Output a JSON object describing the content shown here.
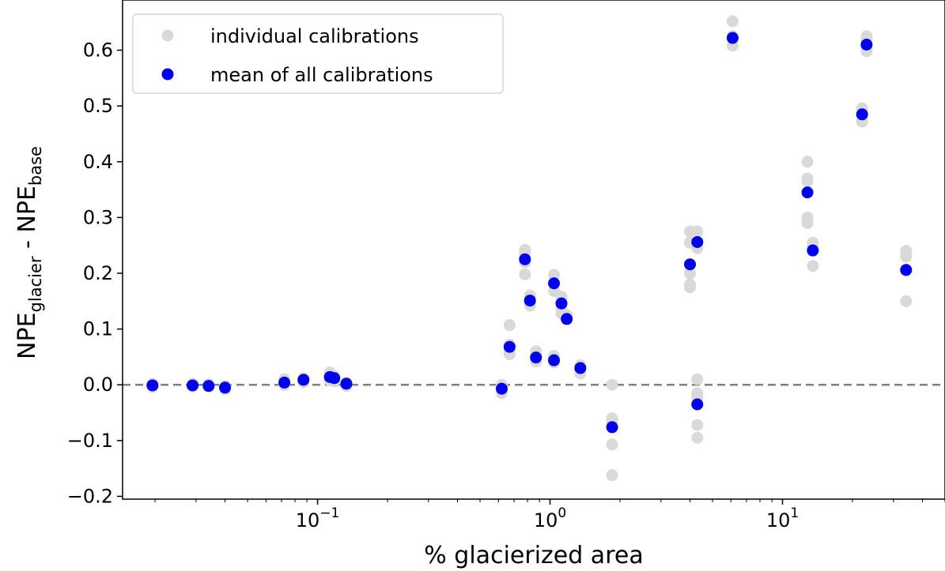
{
  "chart_data": {
    "type": "scatter",
    "xscale": "log",
    "xlim": [
      0.0145,
      50
    ],
    "ylim": [
      -0.205,
      0.69
    ],
    "xlabel": "% glacierized area",
    "ylabel": {
      "main": "NPE",
      "sub1": "glacier",
      "mid": " - NPE",
      "sub2": "base"
    },
    "y_ticks": [
      {
        "value": -0.2,
        "label": "−0.2"
      },
      {
        "value": -0.1,
        "label": "−0.1"
      },
      {
        "value": 0.0,
        "label": "0.0"
      },
      {
        "value": 0.1,
        "label": "0.1"
      },
      {
        "value": 0.2,
        "label": "0.2"
      },
      {
        "value": 0.3,
        "label": "0.3"
      },
      {
        "value": 0.4,
        "label": "0.4"
      },
      {
        "value": 0.5,
        "label": "0.5"
      },
      {
        "value": 0.6,
        "label": "0.6"
      }
    ],
    "x_ticks": [
      {
        "value": 0.1,
        "base": "10",
        "exp": "−1"
      },
      {
        "value": 1,
        "base": "10",
        "exp": "0"
      },
      {
        "value": 10,
        "base": "10",
        "exp": "1"
      }
    ],
    "reference_line": {
      "y": 0,
      "style": "dashed",
      "color": "#808080"
    },
    "legend": {
      "position": "top-left",
      "entries": [
        {
          "label": "individual calibrations",
          "color": "#d9d9d9"
        },
        {
          "label": "mean of all calibrations",
          "color": "#0000ee"
        }
      ]
    },
    "series": [
      {
        "name": "individual calibrations",
        "color": "#d9d9d9",
        "points": [
          [
            0.0195,
            0.002
          ],
          [
            0.0195,
            -0.004
          ],
          [
            0.0195,
            0.0
          ],
          [
            0.029,
            0.002
          ],
          [
            0.029,
            -0.003
          ],
          [
            0.034,
            0.001
          ],
          [
            0.034,
            -0.003
          ],
          [
            0.04,
            -0.002
          ],
          [
            0.04,
            -0.008
          ],
          [
            0.072,
            0.01
          ],
          [
            0.072,
            0.0
          ],
          [
            0.087,
            0.012
          ],
          [
            0.087,
            0.005
          ],
          [
            0.113,
            0.022
          ],
          [
            0.113,
            0.008
          ],
          [
            0.118,
            0.016
          ],
          [
            0.118,
            0.006
          ],
          [
            0.133,
            0.004
          ],
          [
            0.133,
            -0.002
          ],
          [
            0.62,
            -0.015
          ],
          [
            0.62,
            0.0
          ],
          [
            0.67,
            0.107
          ],
          [
            0.67,
            0.06
          ],
          [
            0.67,
            0.055
          ],
          [
            0.67,
            0.072
          ],
          [
            0.78,
            0.242
          ],
          [
            0.78,
            0.236
          ],
          [
            0.78,
            0.198
          ],
          [
            0.78,
            0.22
          ],
          [
            0.82,
            0.16
          ],
          [
            0.82,
            0.142
          ],
          [
            0.82,
            0.148
          ],
          [
            0.87,
            0.06
          ],
          [
            0.87,
            0.042
          ],
          [
            0.87,
            0.052
          ],
          [
            1.04,
            0.197
          ],
          [
            1.04,
            0.168
          ],
          [
            1.04,
            0.052
          ],
          [
            1.04,
            0.04
          ],
          [
            1.12,
            0.158
          ],
          [
            1.12,
            0.138
          ],
          [
            1.12,
            0.128
          ],
          [
            1.18,
            0.118
          ],
          [
            1.18,
            0.125
          ],
          [
            1.35,
            0.035
          ],
          [
            1.35,
            0.02
          ],
          [
            1.35,
            0.027
          ],
          [
            1.85,
            0.0
          ],
          [
            1.85,
            -0.06
          ],
          [
            1.85,
            -0.065
          ],
          [
            1.85,
            -0.107
          ],
          [
            1.85,
            -0.162
          ],
          [
            4.0,
            0.275
          ],
          [
            4.0,
            0.255
          ],
          [
            4.0,
            0.2
          ],
          [
            4.0,
            0.18
          ],
          [
            4.0,
            0.175
          ],
          [
            4.3,
            0.275
          ],
          [
            4.3,
            0.245
          ],
          [
            4.3,
            0.248
          ],
          [
            4.3,
            0.01
          ],
          [
            4.3,
            -0.015
          ],
          [
            4.3,
            -0.022
          ],
          [
            4.3,
            -0.072
          ],
          [
            4.3,
            -0.095
          ],
          [
            6.1,
            0.652
          ],
          [
            6.1,
            0.625
          ],
          [
            6.1,
            0.608
          ],
          [
            12.8,
            0.4
          ],
          [
            12.8,
            0.37
          ],
          [
            12.8,
            0.365
          ],
          [
            12.8,
            0.3
          ],
          [
            12.8,
            0.29
          ],
          [
            13.5,
            0.255
          ],
          [
            13.5,
            0.25
          ],
          [
            13.5,
            0.213
          ],
          [
            13.5,
            0.24
          ],
          [
            22.0,
            0.496
          ],
          [
            22.0,
            0.482
          ],
          [
            22.0,
            0.472
          ],
          [
            23.0,
            0.625
          ],
          [
            23.0,
            0.62
          ],
          [
            23.0,
            0.602
          ],
          [
            23.0,
            0.598
          ],
          [
            34.0,
            0.24
          ],
          [
            34.0,
            0.23
          ],
          [
            34.0,
            0.205
          ],
          [
            34.0,
            0.15
          ]
        ]
      },
      {
        "name": "mean of all calibrations",
        "color": "#0000ee",
        "points": [
          [
            0.0195,
            -0.001
          ],
          [
            0.029,
            -0.001
          ],
          [
            0.034,
            -0.002
          ],
          [
            0.04,
            -0.005
          ],
          [
            0.072,
            0.004
          ],
          [
            0.087,
            0.009
          ],
          [
            0.113,
            0.014
          ],
          [
            0.118,
            0.012
          ],
          [
            0.133,
            0.002
          ],
          [
            0.62,
            -0.007
          ],
          [
            0.67,
            0.068
          ],
          [
            0.78,
            0.225
          ],
          [
            0.82,
            0.151
          ],
          [
            0.87,
            0.049
          ],
          [
            1.04,
            0.182
          ],
          [
            1.04,
            0.044
          ],
          [
            1.12,
            0.146
          ],
          [
            1.18,
            0.118
          ],
          [
            1.35,
            0.03
          ],
          [
            1.85,
            -0.076
          ],
          [
            4.0,
            0.216
          ],
          [
            4.3,
            0.256
          ],
          [
            4.3,
            -0.035
          ],
          [
            6.1,
            0.622
          ],
          [
            12.8,
            0.345
          ],
          [
            13.5,
            0.241
          ],
          [
            22.0,
            0.485
          ],
          [
            23.0,
            0.61
          ],
          [
            34.0,
            0.206
          ]
        ]
      }
    ]
  }
}
